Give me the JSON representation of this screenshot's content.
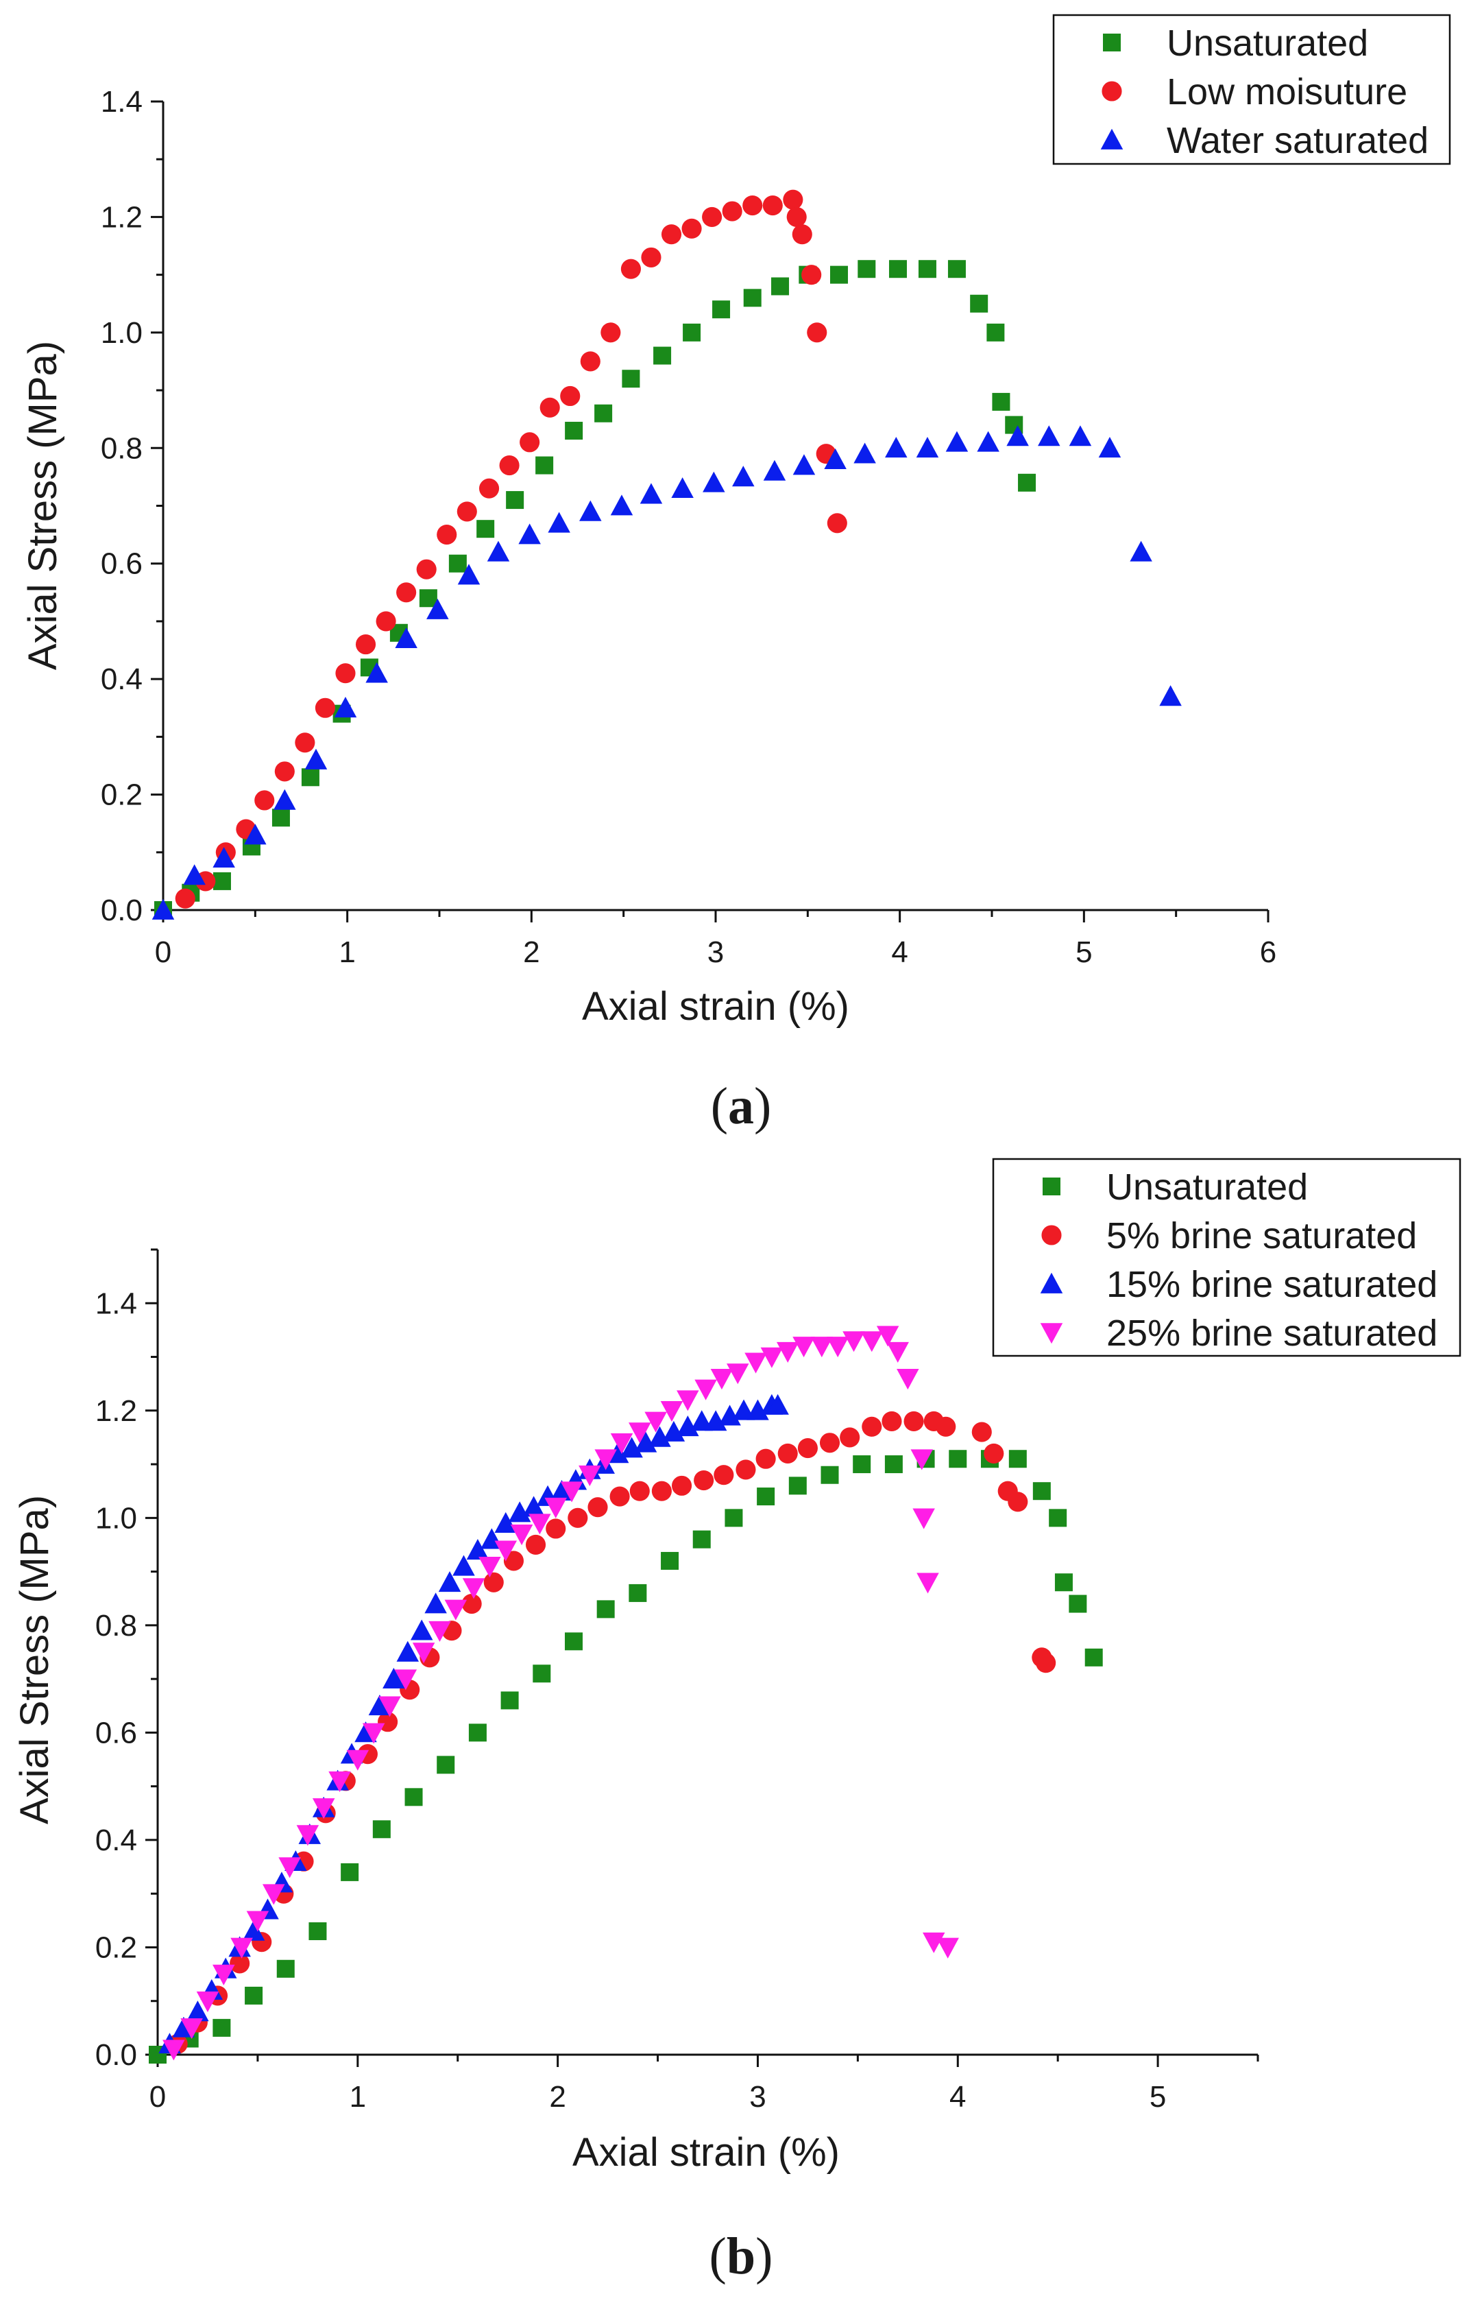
{
  "chart_data": [
    {
      "type": "scatter",
      "caption_label": "a",
      "xlabel": "Axial strain (%)",
      "ylabel": "Axial Stress (MPa)",
      "xlim": [
        0,
        6
      ],
      "ylim": [
        0,
        1.4
      ],
      "xticks": [
        "0",
        "1",
        "2",
        "3",
        "4",
        "5",
        "6"
      ],
      "yticks": [
        "0.0",
        "0.2",
        "0.4",
        "0.6",
        "0.8",
        "1.0",
        "1.2",
        "1.4"
      ],
      "legend_position": "top-right",
      "series": [
        {
          "name": "Unsaturated",
          "marker": "square",
          "color": "#1a8a1a",
          "x": [
            0.0,
            0.15,
            0.32,
            0.48,
            0.64,
            0.8,
            0.97,
            1.12,
            1.28,
            1.44,
            1.6,
            1.75,
            1.91,
            2.07,
            2.23,
            2.39,
            2.54,
            2.71,
            2.87,
            3.03,
            3.2,
            3.35,
            3.5,
            3.67,
            3.82,
            3.99,
            4.15,
            4.31,
            4.43,
            4.52,
            4.55,
            4.62,
            4.69
          ],
          "y": [
            0.0,
            0.03,
            0.05,
            0.11,
            0.16,
            0.23,
            0.34,
            0.42,
            0.48,
            0.54,
            0.6,
            0.66,
            0.71,
            0.77,
            0.83,
            0.86,
            0.92,
            0.96,
            1.0,
            1.04,
            1.06,
            1.08,
            1.1,
            1.1,
            1.11,
            1.11,
            1.11,
            1.11,
            1.05,
            1.0,
            0.88,
            0.84,
            0.74
          ]
        },
        {
          "name": "Low  moisuture",
          "marker": "circle",
          "color": "#ee1c24",
          "x": [
            0.12,
            0.23,
            0.34,
            0.45,
            0.55,
            0.66,
            0.77,
            0.88,
            0.99,
            1.1,
            1.21,
            1.32,
            1.43,
            1.54,
            1.65,
            1.77,
            1.88,
            1.99,
            2.1,
            2.21,
            2.32,
            2.43,
            2.54,
            2.65,
            2.76,
            2.87,
            2.98,
            3.09,
            3.2,
            3.31,
            3.42,
            3.44,
            3.47,
            3.52,
            3.55,
            3.6,
            3.66
          ],
          "y": [
            0.02,
            0.05,
            0.1,
            0.14,
            0.19,
            0.24,
            0.29,
            0.35,
            0.41,
            0.46,
            0.5,
            0.55,
            0.59,
            0.65,
            0.69,
            0.73,
            0.77,
            0.81,
            0.87,
            0.89,
            0.95,
            1.0,
            1.11,
            1.13,
            1.17,
            1.18,
            1.2,
            1.21,
            1.22,
            1.22,
            1.23,
            1.2,
            1.17,
            1.1,
            1.0,
            0.79,
            0.67
          ]
        },
        {
          "name": "Water saturated",
          "marker": "triangle-up",
          "color": "#0a1eed",
          "x": [
            0.0,
            0.17,
            0.33,
            0.5,
            0.66,
            0.83,
            0.99,
            1.16,
            1.32,
            1.49,
            1.66,
            1.82,
            1.99,
            2.15,
            2.32,
            2.49,
            2.65,
            2.82,
            2.99,
            3.15,
            3.32,
            3.48,
            3.65,
            3.81,
            3.98,
            4.15,
            4.31,
            4.48,
            4.64,
            4.81,
            4.98,
            5.14,
            5.31,
            5.47
          ],
          "y": [
            0.0,
            0.06,
            0.09,
            0.13,
            0.19,
            0.26,
            0.35,
            0.41,
            0.47,
            0.52,
            0.58,
            0.62,
            0.65,
            0.67,
            0.69,
            0.7,
            0.72,
            0.73,
            0.74,
            0.75,
            0.76,
            0.77,
            0.78,
            0.79,
            0.8,
            0.8,
            0.81,
            0.81,
            0.82,
            0.82,
            0.82,
            0.8,
            0.62,
            0.37
          ]
        }
      ]
    },
    {
      "type": "scatter",
      "caption_label": "b",
      "xlabel": "Axial strain (%)",
      "ylabel": "Axial Stress (MPa)",
      "xlim": [
        0,
        5.5
      ],
      "ylim": [
        0,
        1.5
      ],
      "xticks": [
        "0",
        "1",
        "2",
        "3",
        "4",
        "5"
      ],
      "yticks": [
        "0.0",
        "0.2",
        "0.4",
        "0.6",
        "0.8",
        "1.0",
        "1.2",
        "1.4"
      ],
      "legend_position": "top-right",
      "series": [
        {
          "name": "Unsaturated",
          "marker": "square",
          "color": "#1a8a1a",
          "x": [
            0.0,
            0.16,
            0.32,
            0.48,
            0.64,
            0.8,
            0.96,
            1.12,
            1.28,
            1.44,
            1.6,
            1.76,
            1.92,
            2.08,
            2.24,
            2.4,
            2.56,
            2.72,
            2.88,
            3.04,
            3.2,
            3.36,
            3.52,
            3.68,
            3.84,
            4.0,
            4.16,
            4.3,
            4.42,
            4.5,
            4.53,
            4.6,
            4.68
          ],
          "y": [
            0.0,
            0.03,
            0.05,
            0.11,
            0.16,
            0.23,
            0.34,
            0.42,
            0.48,
            0.54,
            0.6,
            0.66,
            0.71,
            0.77,
            0.83,
            0.86,
            0.92,
            0.96,
            1.0,
            1.04,
            1.06,
            1.08,
            1.1,
            1.1,
            1.11,
            1.11,
            1.11,
            1.11,
            1.05,
            1.0,
            0.88,
            0.84,
            0.74
          ]
        },
        {
          "name": "5% brine saturated",
          "marker": "circle",
          "color": "#ee1c24",
          "x": [
            0.1,
            0.2,
            0.3,
            0.41,
            0.52,
            0.63,
            0.73,
            0.84,
            0.94,
            1.05,
            1.15,
            1.26,
            1.36,
            1.47,
            1.57,
            1.68,
            1.78,
            1.89,
            1.99,
            2.1,
            2.2,
            2.31,
            2.41,
            2.52,
            2.62,
            2.73,
            2.83,
            2.94,
            3.04,
            3.15,
            3.25,
            3.36,
            3.46,
            3.57,
            3.67,
            3.78,
            3.88,
            3.94,
            4.12,
            4.18,
            4.25,
            4.3,
            4.42,
            4.44
          ],
          "y": [
            0.02,
            0.06,
            0.11,
            0.17,
            0.21,
            0.3,
            0.36,
            0.45,
            0.51,
            0.56,
            0.62,
            0.68,
            0.74,
            0.79,
            0.84,
            0.88,
            0.92,
            0.95,
            0.98,
            1.0,
            1.02,
            1.04,
            1.05,
            1.05,
            1.06,
            1.07,
            1.08,
            1.09,
            1.11,
            1.12,
            1.13,
            1.14,
            1.15,
            1.17,
            1.18,
            1.18,
            1.18,
            1.17,
            1.16,
            1.12,
            1.05,
            1.03,
            0.74,
            0.73
          ]
        },
        {
          "name": "15% brine saturated",
          "marker": "triangle-up",
          "color": "#0a1eed",
          "x": [
            0.06,
            0.13,
            0.2,
            0.27,
            0.34,
            0.41,
            0.48,
            0.55,
            0.62,
            0.69,
            0.76,
            0.83,
            0.9,
            0.97,
            1.04,
            1.11,
            1.18,
            1.25,
            1.32,
            1.39,
            1.46,
            1.53,
            1.6,
            1.67,
            1.74,
            1.81,
            1.88,
            1.95,
            2.02,
            2.09,
            2.16,
            2.23,
            2.3,
            2.37,
            2.44,
            2.51,
            2.58,
            2.65,
            2.72,
            2.79,
            2.86,
            2.93,
            3.0,
            3.07,
            3.1
          ],
          "y": [
            0.02,
            0.05,
            0.08,
            0.12,
            0.16,
            0.2,
            0.23,
            0.27,
            0.32,
            0.36,
            0.41,
            0.46,
            0.51,
            0.56,
            0.6,
            0.65,
            0.7,
            0.75,
            0.79,
            0.84,
            0.88,
            0.91,
            0.94,
            0.96,
            0.99,
            1.01,
            1.02,
            1.04,
            1.05,
            1.07,
            1.09,
            1.1,
            1.12,
            1.13,
            1.14,
            1.15,
            1.16,
            1.17,
            1.18,
            1.18,
            1.19,
            1.2,
            1.2,
            1.21,
            1.21
          ]
        },
        {
          "name": "25% brine saturated",
          "marker": "triangle-down",
          "color": "#ff1ee6",
          "x": [
            0.08,
            0.17,
            0.25,
            0.33,
            0.42,
            0.5,
            0.58,
            0.66,
            0.75,
            0.83,
            0.91,
            1.0,
            1.08,
            1.16,
            1.24,
            1.33,
            1.41,
            1.49,
            1.58,
            1.66,
            1.74,
            1.82,
            1.91,
            1.99,
            2.07,
            2.16,
            2.24,
            2.32,
            2.41,
            2.49,
            2.57,
            2.65,
            2.74,
            2.82,
            2.9,
            2.99,
            3.07,
            3.15,
            3.23,
            3.32,
            3.4,
            3.48,
            3.57,
            3.65,
            3.7,
            3.75,
            3.82,
            3.83,
            3.85,
            3.88,
            3.95
          ],
          "y": [
            0.01,
            0.05,
            0.1,
            0.15,
            0.2,
            0.25,
            0.3,
            0.35,
            0.41,
            0.46,
            0.51,
            0.55,
            0.6,
            0.65,
            0.7,
            0.75,
            0.79,
            0.83,
            0.87,
            0.91,
            0.94,
            0.97,
            0.99,
            1.02,
            1.05,
            1.08,
            1.11,
            1.14,
            1.16,
            1.18,
            1.2,
            1.22,
            1.24,
            1.26,
            1.27,
            1.29,
            1.3,
            1.31,
            1.32,
            1.32,
            1.32,
            1.33,
            1.33,
            1.34,
            1.31,
            1.26,
            1.11,
            1.0,
            0.88,
            0.21,
            0.2
          ]
        }
      ]
    }
  ]
}
